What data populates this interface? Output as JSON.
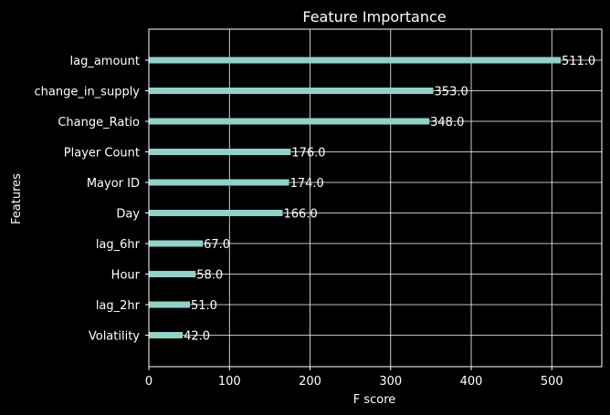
{
  "chart_data": {
    "type": "bar",
    "orientation": "horizontal",
    "title": "Feature Importance",
    "xlabel": "F score",
    "ylabel": "Features",
    "xlim": [
      0,
      562
    ],
    "x_ticks": [
      0,
      100,
      200,
      300,
      400,
      500
    ],
    "grid": true,
    "categories": [
      "lag_amount",
      "change_in_supply",
      "Change_Ratio",
      "Player Count",
      "Mayor ID",
      "Day",
      "lag_6hr",
      "Hour",
      "lag_2hr",
      "Volatility"
    ],
    "values": [
      511.0,
      353.0,
      348.0,
      176.0,
      174.0,
      166.0,
      67.0,
      58.0,
      51.0,
      42.0
    ],
    "value_labels": [
      "511.0",
      "353.0",
      "348.0",
      "176.0",
      "174.0",
      "166.0",
      "67.0",
      "58.0",
      "51.0",
      "42.0"
    ],
    "colors": {
      "background": "#000000",
      "bar": "#8dd3c7",
      "grid": "#ffffff",
      "text": "#ffffff"
    }
  }
}
